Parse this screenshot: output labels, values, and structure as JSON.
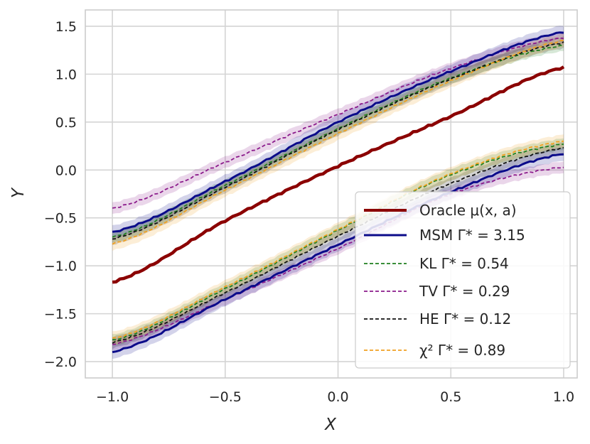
{
  "chart_data": {
    "type": "line",
    "xlabel": "X",
    "ylabel": "Y",
    "xlim": [
      -1.12,
      1.06
    ],
    "ylim": [
      -2.17,
      1.67
    ],
    "grid": true,
    "legend_position": "lower-right",
    "xticks": [
      -1.0,
      -0.5,
      0.0,
      0.5,
      1.0
    ],
    "xtick_labels": [
      "−1.0",
      "−0.5",
      "0.0",
      "0.5",
      "1.0"
    ],
    "yticks": [
      1.5,
      1.0,
      0.5,
      0.0,
      -0.5,
      -1.0,
      -1.5,
      -2.0
    ],
    "ytick_labels": [
      "1.5",
      "1.0",
      "0.5",
      "0.0",
      "−0.5",
      "−1.0",
      "−1.5",
      "−2.0"
    ],
    "x_points": [
      -1.0,
      -0.5,
      0.0,
      0.5,
      1.0
    ],
    "series": [
      {
        "key": "kl",
        "legend_label": "KL Γ* = 0.54",
        "color": "#1f7f1f",
        "style": "dashed",
        "upper": [
          -0.7,
          -0.16,
          0.43,
          0.96,
          1.3
        ],
        "lower": [
          -1.78,
          -1.24,
          -0.63,
          -0.05,
          0.27
        ],
        "band_halfwidth": 0.06
      },
      {
        "key": "tv",
        "legend_label": "TV Γ* = 0.29",
        "color": "#8b1a8b",
        "style": "dashed",
        "upper": [
          -0.4,
          0.08,
          0.58,
          1.06,
          1.38
        ],
        "lower": [
          -1.82,
          -1.35,
          -0.82,
          -0.25,
          0.03
        ],
        "band_halfwidth": 0.06
      },
      {
        "key": "he",
        "legend_label": "HE Γ* = 0.12",
        "color": "#111111",
        "style": "dashed",
        "upper": [
          -0.72,
          -0.18,
          0.42,
          0.95,
          1.33
        ],
        "lower": [
          -1.8,
          -1.28,
          -0.69,
          -0.14,
          0.23
        ],
        "band_halfwidth": 0.06
      },
      {
        "key": "chi",
        "legend_label": "χ² Γ* = 0.89",
        "color": "#f0a020",
        "style": "dashed",
        "upper": [
          -0.77,
          -0.21,
          0.38,
          0.93,
          1.35
        ],
        "lower": [
          -1.76,
          -1.22,
          -0.62,
          -0.04,
          0.3
        ],
        "band_halfwidth": 0.07
      },
      {
        "key": "msm",
        "legend_label": "MSM Γ* = 3.15",
        "color": "#0b0b8a",
        "style": "solid",
        "upper": [
          -0.65,
          -0.12,
          0.5,
          1.03,
          1.44
        ],
        "lower": [
          -1.9,
          -1.35,
          -0.78,
          -0.23,
          0.17
        ],
        "band_halfwidth": 0.07
      },
      {
        "key": "oracle",
        "legend_label": "Oracle μ(x, a)",
        "color": "#8b0000",
        "style": "solid",
        "values": [
          -1.17,
          -0.53,
          0.04,
          0.56,
          1.07
        ]
      }
    ]
  }
}
